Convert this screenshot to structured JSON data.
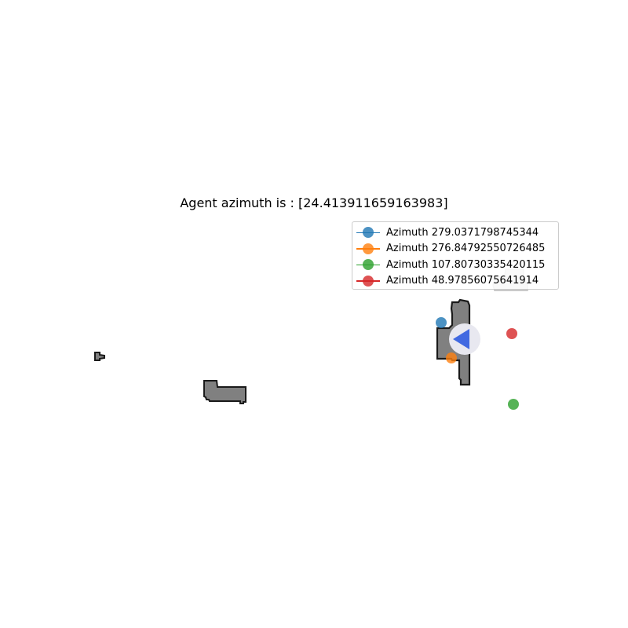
{
  "title": "Agent azimuth is : [24.413911659163983]",
  "legend": {
    "placement": "upper-right",
    "items": [
      {
        "label": "Azimuth 279.0371798745344",
        "color": "#1f77b4"
      },
      {
        "label": "Azimuth 276.84792550726485",
        "color": "#ff7f0e"
      },
      {
        "label": "Azimuth 107.80730335420115",
        "color": "#2ca02c"
      },
      {
        "label": "Azimuth 48.97856075641914",
        "color": "#d62728"
      }
    ]
  },
  "agent": {
    "color": "#4169e1",
    "highlight_color": "#e8e8f0",
    "icon": "agent-arrow-icon"
  },
  "obstacle_colors": {
    "fill": "#808080",
    "stroke": "#1a1a1a",
    "faded_fill": "#d8d8d8"
  }
}
